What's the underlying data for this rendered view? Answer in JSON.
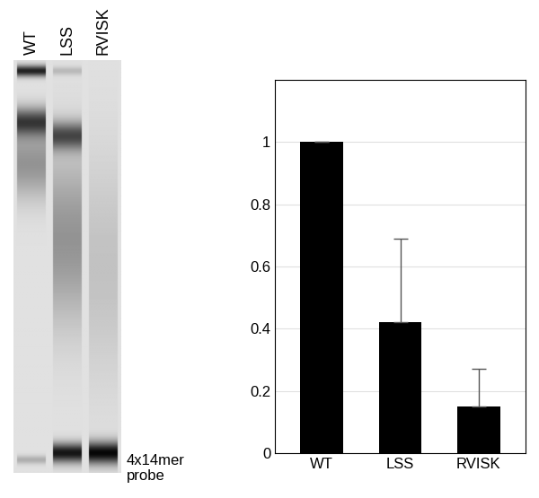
{
  "chart_data": {
    "type": "bar",
    "categories": [
      "WT",
      "LSS",
      "RVISK"
    ],
    "values": [
      1.0,
      0.42,
      0.15
    ],
    "errors": [
      0,
      0.27,
      0.12
    ],
    "color": "#000000",
    "ylim": [
      0,
      1.2
    ],
    "yticks": [
      0,
      0.2,
      0.4,
      0.6,
      0.8,
      1
    ],
    "grid": true
  },
  "gel": {
    "lanes": [
      "WT",
      "LSS",
      "RVISK"
    ],
    "probe_label": "4x14mer probe"
  }
}
